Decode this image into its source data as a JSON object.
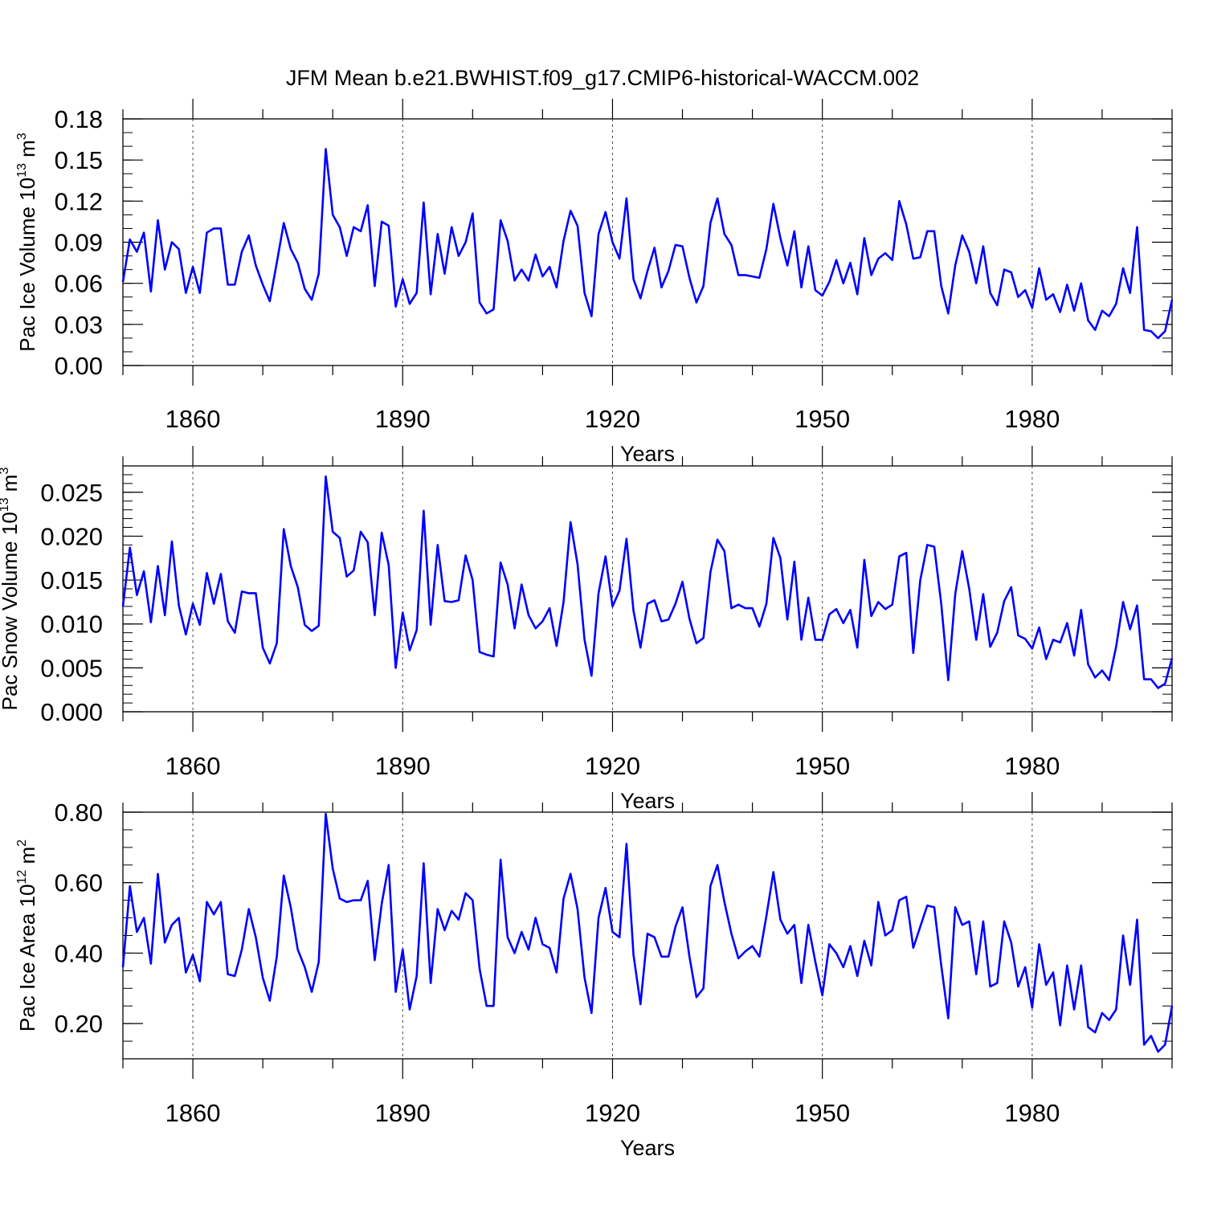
{
  "title": "JFM Mean b.e21.BWHIST.f09_g17.CMIP6-historical-WACCM.002",
  "line_color": "#0000ff",
  "chart_data": [
    {
      "type": "line",
      "ylabel": {
        "main": "Pac Ice Volume 10",
        "exp": "13",
        "unit": " m",
        "unit_exp": "3"
      },
      "xlabel": "Years",
      "xlim": [
        1850,
        2000
      ],
      "ylim": [
        0,
        0.18
      ],
      "yticks": [
        0,
        0.03,
        0.06,
        0.09,
        0.12,
        0.15,
        0.18
      ],
      "yticklabels": [
        "0.00",
        "0.03",
        "0.06",
        "0.09",
        "0.12",
        "0.15",
        "0.18"
      ],
      "yminor": 0.01,
      "xticks": [
        1860,
        1890,
        1920,
        1950,
        1980
      ],
      "xticklabels": [
        "1860",
        "1890",
        "1920",
        "1950",
        "1980"
      ],
      "grid_x": [
        1860,
        1890,
        1920,
        1950,
        1980
      ],
      "x_start": 1850,
      "values": [
        0.061,
        0.092,
        0.083,
        0.097,
        0.054,
        0.106,
        0.07,
        0.09,
        0.085,
        0.053,
        0.072,
        0.053,
        0.097,
        0.1,
        0.1,
        0.059,
        0.059,
        0.083,
        0.095,
        0.073,
        0.059,
        0.047,
        0.075,
        0.104,
        0.085,
        0.075,
        0.056,
        0.048,
        0.067,
        0.158,
        0.11,
        0.101,
        0.08,
        0.101,
        0.098,
        0.117,
        0.058,
        0.105,
        0.102,
        0.043,
        0.063,
        0.045,
        0.053,
        0.119,
        0.052,
        0.096,
        0.067,
        0.101,
        0.08,
        0.09,
        0.111,
        0.046,
        0.038,
        0.041,
        0.106,
        0.091,
        0.062,
        0.07,
        0.062,
        0.081,
        0.065,
        0.072,
        0.057,
        0.091,
        0.113,
        0.102,
        0.053,
        0.036,
        0.096,
        0.112,
        0.09,
        0.078,
        0.122,
        0.063,
        0.049,
        0.069,
        0.086,
        0.057,
        0.069,
        0.088,
        0.087,
        0.064,
        0.046,
        0.058,
        0.104,
        0.122,
        0.096,
        0.088,
        0.066,
        0.066,
        0.065,
        0.064,
        0.085,
        0.118,
        0.093,
        0.073,
        0.098,
        0.057,
        0.087,
        0.055,
        0.051,
        0.061,
        0.077,
        0.06,
        0.075,
        0.052,
        0.093,
        0.066,
        0.078,
        0.082,
        0.077,
        0.12,
        0.103,
        0.078,
        0.079,
        0.098,
        0.098,
        0.058,
        0.038,
        0.073,
        0.095,
        0.083,
        0.06,
        0.087,
        0.053,
        0.044,
        0.07,
        0.068,
        0.05,
        0.055,
        0.042,
        0.071,
        0.048,
        0.052,
        0.039,
        0.059,
        0.04,
        0.06,
        0.033,
        0.026,
        0.04,
        0.036,
        0.045,
        0.071,
        0.053,
        0.101,
        0.026,
        0.025,
        0.02,
        0.025,
        0.048
      ]
    },
    {
      "type": "line",
      "ylabel": {
        "main": "Pac Snow Volume 10",
        "exp": "13",
        "unit": " m",
        "unit_exp": "3"
      },
      "xlabel": "Years",
      "xlim": [
        1850,
        2000
      ],
      "ylim": [
        0,
        0.028
      ],
      "yticks": [
        0,
        0.005,
        0.01,
        0.015,
        0.02,
        0.025
      ],
      "yticklabels": [
        "0.000",
        "0.005",
        "0.010",
        "0.015",
        "0.020",
        "0.025"
      ],
      "yminor": 0.001,
      "xticks": [
        1860,
        1890,
        1920,
        1950,
        1980
      ],
      "xticklabels": [
        "1860",
        "1890",
        "1920",
        "1950",
        "1980"
      ],
      "grid_x": [
        1860,
        1890,
        1920,
        1950,
        1980
      ],
      "x_start": 1850,
      "values": [
        0.012,
        0.0187,
        0.0133,
        0.016,
        0.0102,
        0.0166,
        0.011,
        0.0194,
        0.0121,
        0.0088,
        0.0123,
        0.0099,
        0.0158,
        0.0123,
        0.0157,
        0.0103,
        0.009,
        0.0137,
        0.0135,
        0.0135,
        0.0073,
        0.0055,
        0.0078,
        0.0208,
        0.0166,
        0.0142,
        0.0099,
        0.0092,
        0.0098,
        0.0268,
        0.0205,
        0.0198,
        0.0154,
        0.0161,
        0.0205,
        0.0193,
        0.011,
        0.0204,
        0.0167,
        0.005,
        0.0113,
        0.007,
        0.0093,
        0.0229,
        0.0099,
        0.019,
        0.0126,
        0.0125,
        0.0127,
        0.0178,
        0.015,
        0.0068,
        0.0065,
        0.0063,
        0.017,
        0.0145,
        0.0095,
        0.0145,
        0.011,
        0.0095,
        0.0103,
        0.0118,
        0.0075,
        0.0125,
        0.0216,
        0.0168,
        0.0082,
        0.0041,
        0.0135,
        0.0177,
        0.012,
        0.0138,
        0.0197,
        0.0115,
        0.0073,
        0.0123,
        0.0127,
        0.0103,
        0.0105,
        0.0123,
        0.0148,
        0.0106,
        0.0078,
        0.0084,
        0.0159,
        0.0196,
        0.0183,
        0.0118,
        0.0122,
        0.0118,
        0.0118,
        0.0097,
        0.0123,
        0.0198,
        0.0175,
        0.0105,
        0.0171,
        0.0082,
        0.013,
        0.0082,
        0.0082,
        0.0111,
        0.0117,
        0.0101,
        0.0116,
        0.0073,
        0.0173,
        0.0109,
        0.0125,
        0.0117,
        0.0122,
        0.0177,
        0.0181,
        0.0067,
        0.015,
        0.019,
        0.0188,
        0.0123,
        0.0036,
        0.0134,
        0.0183,
        0.014,
        0.0082,
        0.0134,
        0.0074,
        0.009,
        0.0126,
        0.0142,
        0.0087,
        0.0083,
        0.0072,
        0.0096,
        0.006,
        0.0082,
        0.0079,
        0.0101,
        0.0064,
        0.0116,
        0.0054,
        0.0039,
        0.0047,
        0.0036,
        0.0074,
        0.0125,
        0.0094,
        0.0121,
        0.0037,
        0.0037,
        0.0027,
        0.0032,
        0.0061
      ]
    },
    {
      "type": "line",
      "ylabel": {
        "main": "Pac Ice Area 10",
        "exp": "12",
        "unit": " m",
        "unit_exp": "2"
      },
      "xlabel": "Years",
      "xlim": [
        1850,
        2000
      ],
      "ylim": [
        0.1,
        0.8
      ],
      "yticks": [
        0.2,
        0.4,
        0.6,
        0.8
      ],
      "yticklabels": [
        "0.20",
        "0.40",
        "0.60",
        "0.80"
      ],
      "yminor": 0.05,
      "xticks": [
        1860,
        1890,
        1920,
        1950,
        1980
      ],
      "xticklabels": [
        "1860",
        "1890",
        "1920",
        "1950",
        "1980"
      ],
      "grid_x": [
        1860,
        1890,
        1920,
        1950,
        1980
      ],
      "x_start": 1850,
      "values": [
        0.36,
        0.59,
        0.46,
        0.5,
        0.37,
        0.625,
        0.43,
        0.48,
        0.5,
        0.345,
        0.395,
        0.32,
        0.545,
        0.51,
        0.545,
        0.34,
        0.335,
        0.41,
        0.525,
        0.445,
        0.33,
        0.265,
        0.39,
        0.62,
        0.53,
        0.41,
        0.36,
        0.29,
        0.375,
        0.795,
        0.64,
        0.555,
        0.545,
        0.55,
        0.55,
        0.605,
        0.38,
        0.54,
        0.65,
        0.29,
        0.41,
        0.24,
        0.335,
        0.655,
        0.315,
        0.525,
        0.465,
        0.52,
        0.495,
        0.57,
        0.55,
        0.355,
        0.25,
        0.25,
        0.665,
        0.445,
        0.4,
        0.46,
        0.41,
        0.5,
        0.425,
        0.415,
        0.345,
        0.555,
        0.625,
        0.525,
        0.33,
        0.23,
        0.5,
        0.585,
        0.46,
        0.445,
        0.71,
        0.395,
        0.255,
        0.455,
        0.445,
        0.39,
        0.39,
        0.475,
        0.53,
        0.39,
        0.275,
        0.3,
        0.59,
        0.65,
        0.545,
        0.455,
        0.385,
        0.405,
        0.42,
        0.39,
        0.505,
        0.63,
        0.495,
        0.455,
        0.48,
        0.315,
        0.48,
        0.375,
        0.28,
        0.425,
        0.4,
        0.36,
        0.42,
        0.335,
        0.435,
        0.365,
        0.545,
        0.45,
        0.465,
        0.55,
        0.56,
        0.415,
        0.475,
        0.535,
        0.53,
        0.365,
        0.215,
        0.53,
        0.48,
        0.49,
        0.34,
        0.49,
        0.305,
        0.315,
        0.49,
        0.43,
        0.305,
        0.36,
        0.245,
        0.425,
        0.31,
        0.345,
        0.195,
        0.365,
        0.24,
        0.365,
        0.19,
        0.175,
        0.23,
        0.21,
        0.24,
        0.45,
        0.31,
        0.495,
        0.14,
        0.165,
        0.12,
        0.14,
        0.25
      ]
    }
  ]
}
